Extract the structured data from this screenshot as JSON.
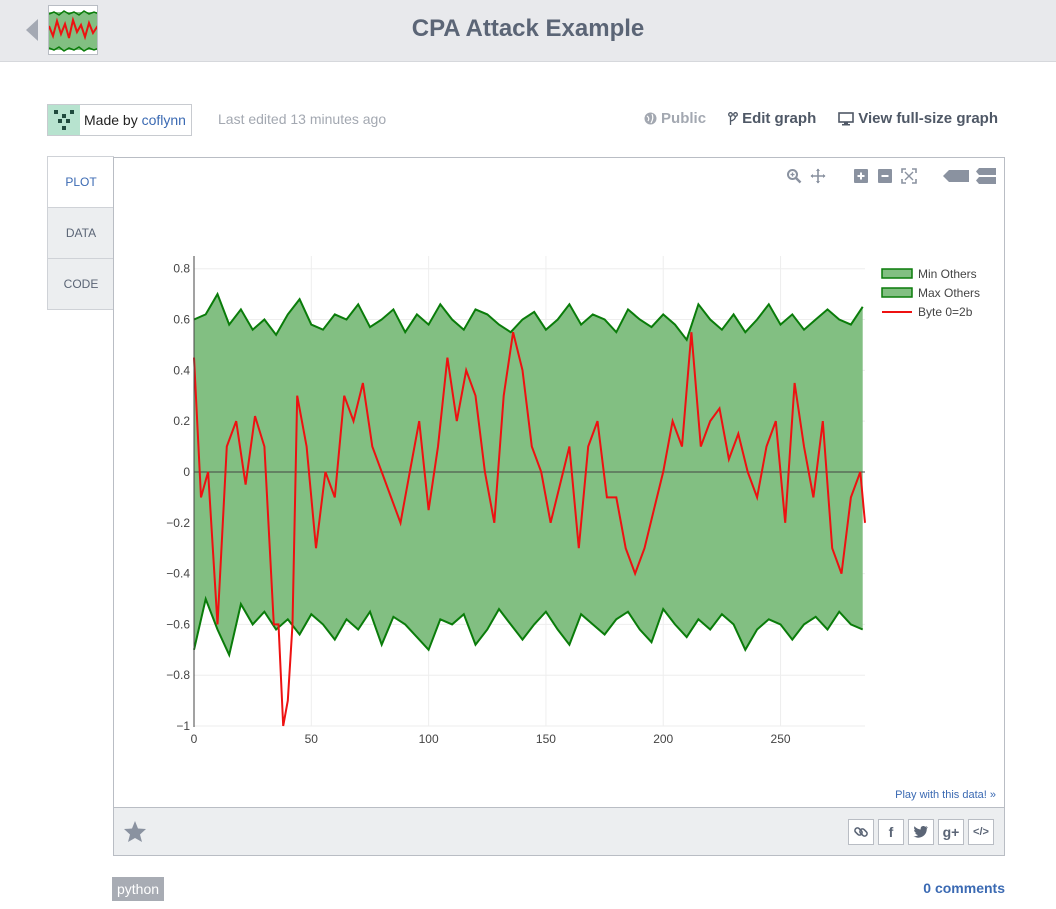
{
  "header": {
    "title": "CPA Attack Example"
  },
  "meta": {
    "made_by_prefix": "Made by ",
    "made_by_user": "coflynn",
    "last_edited": "Last edited 13 minutes ago"
  },
  "actions": {
    "public": "Public",
    "edit_graph": "Edit graph",
    "view_full": "View full-size graph"
  },
  "tabs": [
    {
      "label": "PLOT",
      "active": true
    },
    {
      "label": "DATA",
      "active": false
    },
    {
      "label": "CODE",
      "active": false
    }
  ],
  "modebar": [
    "zoom-icon",
    "pan-icon",
    "zoom-in-icon",
    "zoom-out-icon",
    "autoscale-icon",
    "hover-closest-icon",
    "hover-compare-icon"
  ],
  "play_link": "Play with this data! »",
  "share_buttons": [
    "link-icon",
    "facebook-icon",
    "twitter-icon",
    "google-plus-icon",
    "embed-icon"
  ],
  "share_glyphs": [
    "∞",
    "f",
    "t",
    "g+",
    "</>"
  ],
  "tag": "python",
  "comments": "0 comments",
  "colors": {
    "band_fill": "#82bf82",
    "band_line": "#0a7c0a",
    "target_line": "#ee1111",
    "link": "#3b6ab3"
  },
  "chart_data": {
    "type": "line",
    "title": "",
    "xlabel": "",
    "ylabel": "",
    "xlim": [
      0,
      286
    ],
    "ylim": [
      -1.0,
      0.85
    ],
    "xticks": [
      0,
      50,
      100,
      150,
      200,
      250
    ],
    "yticks": [
      -1,
      -0.8,
      -0.6,
      -0.4,
      -0.2,
      0,
      0.2,
      0.4,
      0.6,
      0.8
    ],
    "ytick_labels": [
      "−1",
      "−0.8",
      "−0.6",
      "−0.4",
      "−0.2",
      "0",
      "0.2",
      "0.4",
      "0.6",
      "0.8"
    ],
    "zero_line": true,
    "grid": true,
    "legend_position": "top-right",
    "series": [
      {
        "name": "Min Others",
        "style": "filled-band-edge",
        "x": [
          0,
          5,
          10,
          15,
          20,
          25,
          30,
          35,
          40,
          45,
          50,
          55,
          60,
          65,
          70,
          75,
          80,
          85,
          90,
          95,
          100,
          105,
          110,
          115,
          120,
          125,
          130,
          135,
          140,
          145,
          150,
          155,
          160,
          165,
          170,
          175,
          180,
          185,
          190,
          195,
          200,
          205,
          210,
          215,
          220,
          225,
          230,
          235,
          240,
          245,
          250,
          255,
          260,
          265,
          270,
          275,
          280,
          285
        ],
        "values": [
          -0.7,
          -0.5,
          -0.62,
          -0.72,
          -0.52,
          -0.6,
          -0.55,
          -0.62,
          -0.58,
          -0.64,
          -0.56,
          -0.6,
          -0.66,
          -0.58,
          -0.62,
          -0.55,
          -0.68,
          -0.57,
          -0.6,
          -0.65,
          -0.7,
          -0.58,
          -0.6,
          -0.56,
          -0.68,
          -0.62,
          -0.54,
          -0.6,
          -0.66,
          -0.6,
          -0.55,
          -0.62,
          -0.68,
          -0.56,
          -0.6,
          -0.64,
          -0.58,
          -0.55,
          -0.62,
          -0.67,
          -0.54,
          -0.6,
          -0.65,
          -0.58,
          -0.62,
          -0.56,
          -0.6,
          -0.7,
          -0.62,
          -0.58,
          -0.6,
          -0.66,
          -0.6,
          -0.57,
          -0.62,
          -0.55,
          -0.6,
          -0.62
        ]
      },
      {
        "name": "Max Others",
        "style": "filled-band-edge",
        "x": [
          0,
          5,
          10,
          15,
          20,
          25,
          30,
          35,
          40,
          45,
          50,
          55,
          60,
          65,
          70,
          75,
          80,
          85,
          90,
          95,
          100,
          105,
          110,
          115,
          120,
          125,
          130,
          135,
          140,
          145,
          150,
          155,
          160,
          165,
          170,
          175,
          180,
          185,
          190,
          195,
          200,
          205,
          210,
          215,
          220,
          225,
          230,
          235,
          240,
          245,
          250,
          255,
          260,
          265,
          270,
          275,
          280,
          285
        ],
        "values": [
          0.6,
          0.62,
          0.7,
          0.58,
          0.64,
          0.56,
          0.6,
          0.54,
          0.62,
          0.68,
          0.58,
          0.56,
          0.62,
          0.6,
          0.66,
          0.57,
          0.6,
          0.64,
          0.55,
          0.62,
          0.58,
          0.66,
          0.6,
          0.56,
          0.64,
          0.62,
          0.58,
          0.55,
          0.6,
          0.63,
          0.56,
          0.6,
          0.66,
          0.58,
          0.62,
          0.6,
          0.55,
          0.64,
          0.6,
          0.57,
          0.62,
          0.58,
          0.52,
          0.66,
          0.6,
          0.56,
          0.62,
          0.55,
          0.6,
          0.66,
          0.58,
          0.62,
          0.56,
          0.6,
          0.64,
          0.6,
          0.58,
          0.65
        ]
      },
      {
        "name": "Byte 0=2b",
        "style": "line",
        "x": [
          0,
          3,
          6,
          10,
          14,
          18,
          22,
          26,
          30,
          34,
          36,
          38,
          40,
          42,
          44,
          48,
          52,
          56,
          60,
          64,
          68,
          72,
          76,
          80,
          84,
          88,
          92,
          96,
          100,
          104,
          108,
          112,
          116,
          120,
          124,
          128,
          132,
          136,
          140,
          144,
          148,
          152,
          156,
          160,
          164,
          168,
          172,
          176,
          180,
          184,
          188,
          192,
          196,
          200,
          204,
          208,
          212,
          216,
          220,
          224,
          228,
          232,
          236,
          240,
          244,
          248,
          252,
          256,
          260,
          264,
          268,
          272,
          276,
          280,
          284,
          286
        ],
        "values": [
          0.45,
          -0.1,
          0.0,
          -0.6,
          0.1,
          0.2,
          -0.05,
          0.22,
          0.1,
          -0.6,
          -0.6,
          -1.0,
          -0.9,
          -0.6,
          0.3,
          0.1,
          -0.3,
          0.0,
          -0.1,
          0.3,
          0.2,
          0.35,
          0.1,
          0.0,
          -0.1,
          -0.2,
          0.0,
          0.2,
          -0.15,
          0.1,
          0.45,
          0.2,
          0.4,
          0.3,
          0.0,
          -0.2,
          0.3,
          0.55,
          0.4,
          0.1,
          0.0,
          -0.2,
          -0.05,
          0.1,
          -0.3,
          0.1,
          0.2,
          -0.1,
          -0.1,
          -0.3,
          -0.4,
          -0.3,
          -0.15,
          0.0,
          0.2,
          0.1,
          0.55,
          0.1,
          0.2,
          0.25,
          0.05,
          0.15,
          0.0,
          -0.1,
          0.1,
          0.2,
          -0.2,
          0.35,
          0.1,
          -0.1,
          0.2,
          -0.3,
          -0.4,
          -0.1,
          0.0,
          -0.2
        ]
      }
    ]
  }
}
